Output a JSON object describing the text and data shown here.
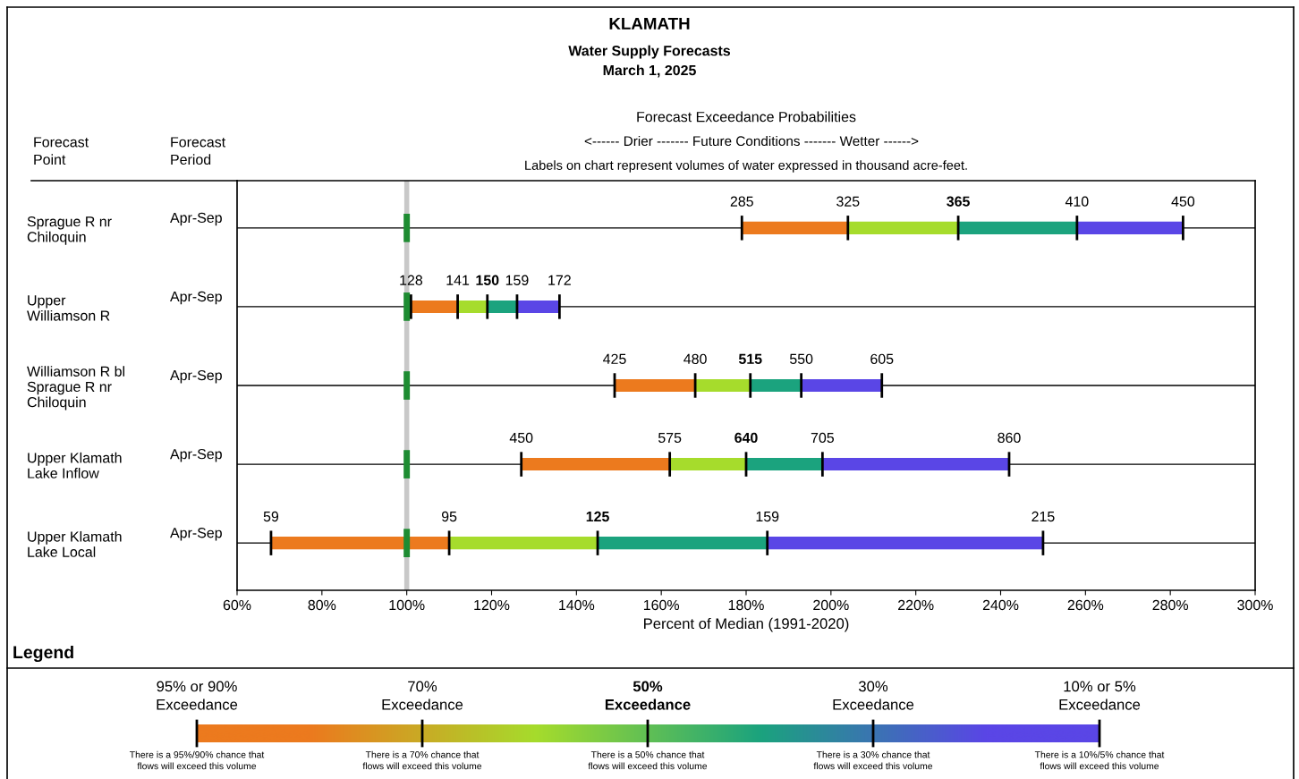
{
  "chart_data": {
    "type": "bar",
    "orientation": "horizontal",
    "title": "KLAMATH",
    "subtitle": "Water Supply Forecasts\nMarch 1, 2025",
    "xlabel": "Percent of Median (1991-2020)",
    "categories": [
      "Sprague R nr\nChiloquin",
      "Upper\nWilliamson R",
      "Williamson R bl\nSprague R nr\nChiloquin",
      "Upper Klamath\nLake Inflow",
      "Upper Klamath\nLake Local"
    ],
    "series": [
      {
        "color": "#ec7a1e",
        "base": [
          179,
          101,
          149,
          127,
          68
        ],
        "values": [
          25,
          11,
          19,
          35,
          42
        ]
      },
      {
        "color": "#a6dc2c",
        "base": [
          204,
          112,
          168,
          162,
          110
        ],
        "values": [
          26,
          7,
          13,
          18,
          35
        ]
      },
      {
        "color": "#1ba37e",
        "base": [
          230,
          119,
          181,
          180,
          145
        ],
        "values": [
          28,
          7,
          12,
          18,
          40
        ]
      },
      {
        "color": "#5a46e6",
        "base": [
          258,
          126,
          193,
          198,
          185
        ],
        "values": [
          25,
          10,
          19,
          44,
          65
        ]
      }
    ],
    "xlim": [
      60,
      300
    ],
    "xticks": [
      {
        "value": 60,
        "label": "60%"
      },
      {
        "value": 80,
        "label": "80%"
      },
      {
        "value": 100,
        "label": "100%"
      },
      {
        "value": 120,
        "label": "120%"
      },
      {
        "value": 140,
        "label": "140%"
      },
      {
        "value": 160,
        "label": "160%"
      },
      {
        "value": 180,
        "label": "180%"
      },
      {
        "value": 200,
        "label": "200%"
      },
      {
        "value": 220,
        "label": "220%"
      },
      {
        "value": 240,
        "label": "240%"
      },
      {
        "value": 260,
        "label": "260%"
      },
      {
        "value": 280,
        "label": "280%"
      },
      {
        "value": 300,
        "label": "300%"
      }
    ],
    "grid": "y",
    "ref_lines": [
      {
        "axis": "x",
        "value": 100,
        "color": "#c8c8c8"
      }
    ],
    "annotations": [
      "Forecast\nPoint",
      "Forecast\nPeriod",
      "Forecast Exceedance Probabilities",
      "<------ Drier ------- Future Conditions ------- Wetter ------>",
      "Labels on chart represent volumes of water expressed in thousand acre-feet.",
      "Legend",
      "95% or 90%\nExceedance",
      "70%\nExceedance",
      "50%\nExceedance",
      "30%\nExceedance",
      "10% or 5%\nExceedance",
      "There is a 95%/90% chance that\nflows will exceed this volume",
      "There is a 70% chance that\nflows will exceed this volume",
      "There is a 50% chance that\nflows will exceed this volume",
      "There is a 30% chance that\nflows will exceed this volume",
      "There is a 10%/5% chance that\nflows will exceed this volume",
      "Apr-Sep",
      "Apr-Sep",
      "Apr-Sep",
      "Apr-Sep",
      "Apr-Sep",
      {
        "text": "285",
        "x": 179,
        "y": "Sprague R nr\nChiloquin"
      },
      {
        "text": "325",
        "x": 204,
        "y": "Sprague R nr\nChiloquin"
      },
      {
        "text": "365",
        "x": 230,
        "y": "Sprague R nr\nChiloquin"
      },
      {
        "text": "410",
        "x": 258,
        "y": "Sprague R nr\nChiloquin"
      },
      {
        "text": "450",
        "x": 283,
        "y": "Sprague R nr\nChiloquin"
      },
      {
        "text": "128",
        "x": 101,
        "y": "Upper\nWilliamson R"
      },
      {
        "text": "141",
        "x": 112,
        "y": "Upper\nWilliamson R"
      },
      {
        "text": "150",
        "x": 119,
        "y": "Upper\nWilliamson R"
      },
      {
        "text": "159",
        "x": 126,
        "y": "Upper\nWilliamson R"
      },
      {
        "text": "172",
        "x": 136,
        "y": "Upper\nWilliamson R"
      },
      {
        "text": "425",
        "x": 149,
        "y": "Williamson R bl\nSprague R nr\nChiloquin"
      },
      {
        "text": "480",
        "x": 168,
        "y": "Williamson R bl\nSprague R nr\nChiloquin"
      },
      {
        "text": "515",
        "x": 181,
        "y": "Williamson R bl\nSprague R nr\nChiloquin"
      },
      {
        "text": "550",
        "x": 193,
        "y": "Williamson R bl\nSprague R nr\nChiloquin"
      },
      {
        "text": "605",
        "x": 212,
        "y": "Williamson R bl\nSprague R nr\nChiloquin"
      },
      {
        "text": "450",
        "x": 127,
        "y": "Upper Klamath\nLake Inflow"
      },
      {
        "text": "575",
        "x": 162,
        "y": "Upper Klamath\nLake Inflow"
      },
      {
        "text": "640",
        "x": 180,
        "y": "Upper Klamath\nLake Inflow"
      },
      {
        "text": "705",
        "x": 198,
        "y": "Upper Klamath\nLake Inflow"
      },
      {
        "text": "860",
        "x": 242,
        "y": "Upper Klamath\nLake Inflow"
      },
      {
        "text": "59",
        "x": 68,
        "y": "Upper Klamath\nLake Local"
      },
      {
        "text": "95",
        "x": 110,
        "y": "Upper Klamath\nLake Local"
      },
      {
        "text": "125",
        "x": 145,
        "y": "Upper Klamath\nLake Local"
      },
      {
        "text": "159",
        "x": 185,
        "y": "Upper Klamath\nLake Local"
      },
      {
        "text": "215",
        "x": 250,
        "y": "Upper Klamath\nLake Local"
      }
    ]
  }
}
